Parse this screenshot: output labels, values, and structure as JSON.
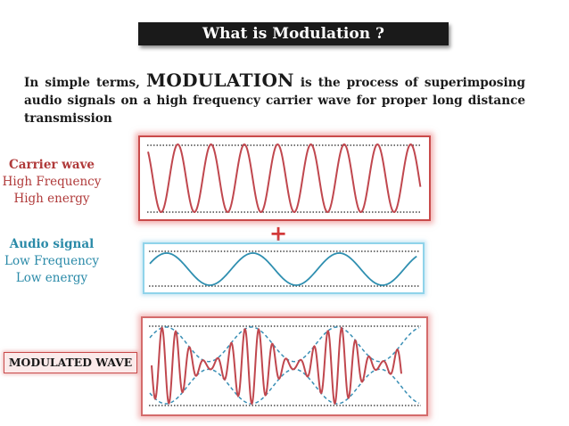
{
  "title": "What is Modulation ?",
  "intro": {
    "before": "In simple terms, ",
    "keyword": "MODULATION",
    "after": " is the process of superimposing audio signals on a high frequency carrier wave for proper long distance transmission"
  },
  "carrier": {
    "name": "Carrier wave",
    "line1": "High Frequency",
    "line2": "High energy"
  },
  "audio": {
    "name": "Audio signal",
    "line1": "Low Frequency",
    "line2": "Low energy"
  },
  "plus_symbol": "+",
  "modulated": {
    "name": "MODULATED WAVE"
  },
  "colors": {
    "carrier": "#c0474e",
    "audio": "#2f8fb0",
    "modulated": "#c0474e",
    "envelope": "#3a8fb5"
  }
}
